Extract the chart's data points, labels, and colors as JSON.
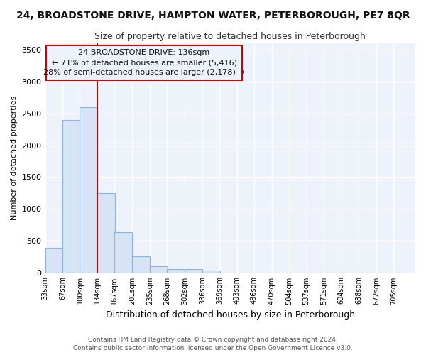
{
  "title": "24, BROADSTONE DRIVE, HAMPTON WATER, PETERBOROUGH, PE7 8QR",
  "subtitle": "Size of property relative to detached houses in Peterborough",
  "xlabel": "Distribution of detached houses by size in Peterborough",
  "ylabel": "Number of detached properties",
  "footnote1": "Contains HM Land Registry data © Crown copyright and database right 2024.",
  "footnote2": "Contains public sector information licensed under the Open Government Licence v3.0.",
  "annotation_line1": "24 BROADSTONE DRIVE: 136sqm",
  "annotation_line2": "← 71% of detached houses are smaller (5,416)",
  "annotation_line3": "28% of semi-detached houses are larger (2,178) →",
  "bar_color": "#d6e4f5",
  "bar_edge_color": "#8ab4d8",
  "categories": [
    "33sqm",
    "67sqm",
    "100sqm",
    "134sqm",
    "167sqm",
    "201sqm",
    "235sqm",
    "268sqm",
    "302sqm",
    "336sqm",
    "369sqm",
    "403sqm",
    "436sqm",
    "470sqm",
    "504sqm",
    "537sqm",
    "571sqm",
    "604sqm",
    "638sqm",
    "672sqm",
    "705sqm"
  ],
  "bin_edges": [
    33,
    67,
    100,
    134,
    167,
    201,
    235,
    268,
    302,
    336,
    369,
    403,
    436,
    470,
    504,
    537,
    571,
    604,
    638,
    672,
    705
  ],
  "bin_width": 34,
  "values": [
    390,
    2390,
    2600,
    1250,
    640,
    260,
    100,
    55,
    55,
    40,
    0,
    0,
    0,
    0,
    0,
    0,
    0,
    0,
    0,
    0,
    0
  ],
  "ylim": [
    0,
    3600
  ],
  "yticks": [
    0,
    500,
    1000,
    1500,
    2000,
    2500,
    3000,
    3500
  ],
  "bg_color": "#ffffff",
  "plot_bg_color": "#eef3fb",
  "grid_color": "#ffffff",
  "red_line_bin_index": 3,
  "annotation_box_color": "#cc0000"
}
